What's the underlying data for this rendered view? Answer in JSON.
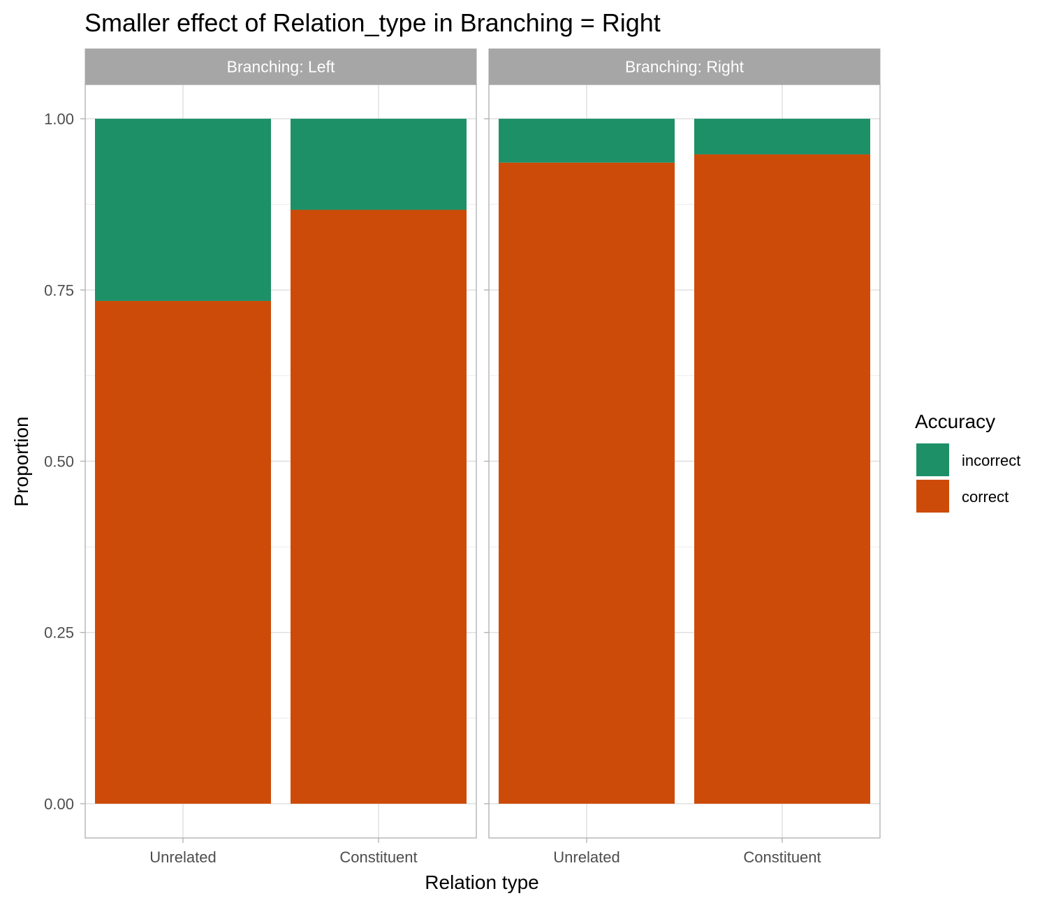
{
  "chart_data": {
    "type": "bar",
    "stacked": true,
    "title": "Smaller effect of Relation_type in Branching = Right",
    "xlabel": "Relation type",
    "ylabel": "Proportion",
    "ylim": [
      -0.05,
      1.05
    ],
    "yticks": [
      "0.00",
      "0.25",
      "0.50",
      "0.75",
      "1.00"
    ],
    "categories": [
      "Unrelated",
      "Constituent"
    ],
    "grid": true,
    "facets": [
      {
        "label": "Branching: Left",
        "series": [
          {
            "name": "correct",
            "values": [
              0.734,
              0.867
            ]
          },
          {
            "name": "incorrect",
            "values": [
              0.266,
              0.133
            ]
          }
        ]
      },
      {
        "label": "Branching: Right",
        "series": [
          {
            "name": "correct",
            "values": [
              0.936,
              0.948
            ]
          },
          {
            "name": "incorrect",
            "values": [
              0.064,
              0.052
            ]
          }
        ]
      }
    ],
    "legend": {
      "title": "Accuracy",
      "placement": "right",
      "entries": [
        {
          "name": "incorrect",
          "color": "#1B9E77"
        },
        {
          "name": "correct",
          "color": "#D95F02"
        }
      ]
    },
    "colors": {
      "correct": "#CD4B08",
      "incorrect": "#1E9068"
    }
  }
}
